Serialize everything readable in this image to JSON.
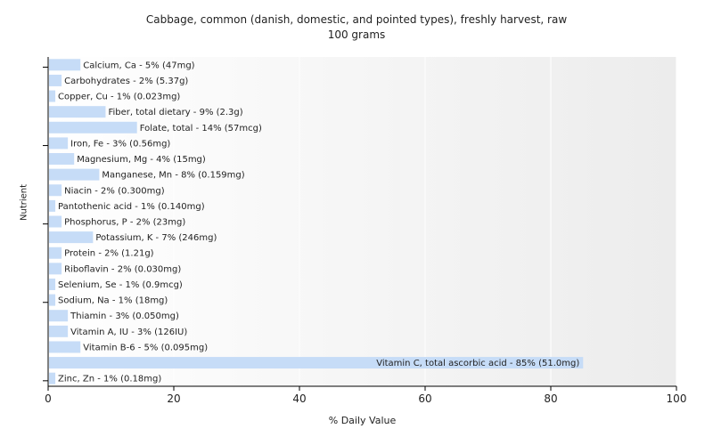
{
  "chart_data": {
    "type": "bar",
    "orientation": "horizontal",
    "title": "Cabbage, common (danish, domestic, and pointed types), freshly harvest, raw",
    "subtitle": "100 grams",
    "xlabel": "% Daily Value",
    "ylabel": "Nutrient",
    "xlim": [
      0,
      100
    ],
    "xticks": [
      "0",
      "20",
      "40",
      "60",
      "80",
      "100"
    ],
    "grid": true,
    "bar_color": "#c6dcf7",
    "categories": [
      "Calcium, Ca - 5% (47mg)",
      "Carbohydrates - 2% (5.37g)",
      "Copper, Cu - 1% (0.023mg)",
      "Fiber, total dietary - 9% (2.3g)",
      "Folate, total - 14% (57mcg)",
      "Iron, Fe - 3% (0.56mg)",
      "Magnesium, Mg - 4% (15mg)",
      "Manganese, Mn - 8% (0.159mg)",
      "Niacin - 2% (0.300mg)",
      "Pantothenic acid - 1% (0.140mg)",
      "Phosphorus, P - 2% (23mg)",
      "Potassium, K - 7% (246mg)",
      "Protein - 2% (1.21g)",
      "Riboflavin - 2% (0.030mg)",
      "Selenium, Se - 1% (0.9mcg)",
      "Sodium, Na - 1% (18mg)",
      "Thiamin - 3% (0.050mg)",
      "Vitamin A, IU - 3% (126IU)",
      "Vitamin B-6 - 5% (0.095mg)",
      "Vitamin C, total ascorbic acid - 85% (51.0mg)",
      "Zinc, Zn - 1% (0.18mg)"
    ],
    "values": [
      5,
      2,
      1,
      9,
      14,
      3,
      4,
      8,
      2,
      1,
      2,
      7,
      2,
      2,
      1,
      1,
      3,
      3,
      5,
      85,
      1
    ]
  }
}
